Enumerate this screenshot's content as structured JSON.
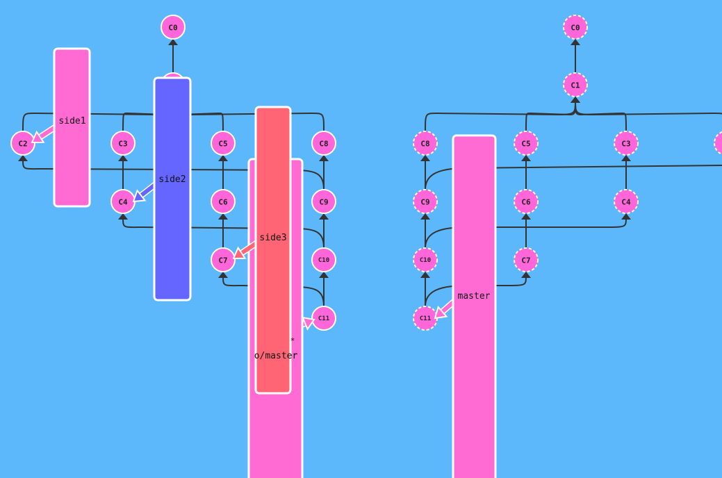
{
  "local": {
    "commits": [
      {
        "id": "C0",
        "label": "C0"
      },
      {
        "id": "C1",
        "label": "C1"
      },
      {
        "id": "C2",
        "label": "C2"
      },
      {
        "id": "C3",
        "label": "C3"
      },
      {
        "id": "C4",
        "label": "C4"
      },
      {
        "id": "C5",
        "label": "C5"
      },
      {
        "id": "C6",
        "label": "C6"
      },
      {
        "id": "C7",
        "label": "C7"
      },
      {
        "id": "C8",
        "label": "C8"
      },
      {
        "id": "C9",
        "label": "C9"
      },
      {
        "id": "C10",
        "label": "C10"
      },
      {
        "id": "C11",
        "label": "C11"
      }
    ],
    "branches": [
      {
        "id": "side1",
        "label": "side1",
        "target": "C2",
        "color": "#ff6bd3"
      },
      {
        "id": "side2",
        "label": "side2",
        "target": "C4",
        "color": "#6565ff"
      },
      {
        "id": "side3",
        "label": "side3",
        "target": "C7",
        "color": "#ff6574"
      },
      {
        "id": "o-master",
        "label": "o/master",
        "target": "C11",
        "color": "#ff6bd3"
      }
    ],
    "head_marker": "*"
  },
  "remote": {
    "commits": [
      {
        "id": "C0",
        "label": "C0"
      },
      {
        "id": "C1",
        "label": "C1"
      },
      {
        "id": "C8",
        "label": "C8"
      },
      {
        "id": "C5",
        "label": "C5"
      },
      {
        "id": "C3",
        "label": "C3"
      },
      {
        "id": "C9",
        "label": "C9"
      },
      {
        "id": "C6",
        "label": "C6"
      },
      {
        "id": "C4",
        "label": "C4"
      },
      {
        "id": "C10",
        "label": "C10"
      },
      {
        "id": "C7",
        "label": "C7"
      },
      {
        "id": "C11",
        "label": "C11"
      }
    ],
    "branches": [
      {
        "id": "master",
        "label": "master",
        "target": "C11",
        "color": "#ff6bd3"
      }
    ]
  },
  "colors": {
    "background": "#5cb8fa",
    "commit": "#ff66d9",
    "edge": "#333333"
  }
}
